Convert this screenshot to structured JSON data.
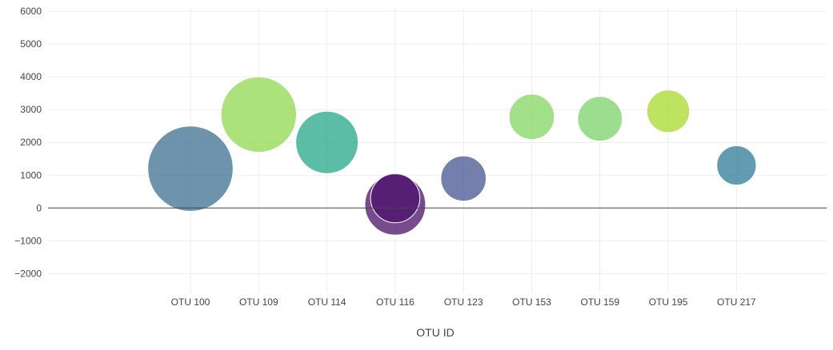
{
  "chart_data": {
    "type": "scatter",
    "subtype": "bubble",
    "title": "",
    "xlabel": "OTU ID",
    "ylabel": "",
    "ylim": [
      -2600,
      6100
    ],
    "yticks": [
      -2000,
      -1000,
      0,
      1000,
      2000,
      3000,
      4000,
      5000,
      6000
    ],
    "ytick_labels": [
      "−2000",
      "−1000",
      "0",
      "1000",
      "2000",
      "3000",
      "4000",
      "5000",
      "6000"
    ],
    "categories": [
      "OTU 100",
      "OTU 109",
      "OTU 114",
      "OTU 116",
      "OTU 123",
      "OTU 153",
      "OTU 159",
      "OTU 195",
      "OTU 217"
    ],
    "points": [
      {
        "x": "OTU 100",
        "y": 1200,
        "size": 2600,
        "color": "#3d6f92"
      },
      {
        "x": "OTU 109",
        "y": 2850,
        "size": 2300,
        "color": "#8fd850"
      },
      {
        "x": "OTU 114",
        "y": 2000,
        "size": 1900,
        "color": "#25a78a"
      },
      {
        "x": "OTU 116",
        "y": 100,
        "size": 1850,
        "color": "#4a0f66"
      },
      {
        "x": "OTU 116",
        "y": 300,
        "size": 1500,
        "color": "#4b0f6e"
      },
      {
        "x": "OTU 123",
        "y": 900,
        "size": 1380,
        "color": "#46558f"
      },
      {
        "x": "OTU 153",
        "y": 2780,
        "size": 1380,
        "color": "#83d561"
      },
      {
        "x": "OTU 159",
        "y": 2720,
        "size": 1360,
        "color": "#7bd26a"
      },
      {
        "x": "OTU 195",
        "y": 2950,
        "size": 1300,
        "color": "#a8da2c"
      },
      {
        "x": "OTU 217",
        "y": 1300,
        "size": 1200,
        "color": "#2f7a98"
      }
    ],
    "legend": "none",
    "grid": true
  }
}
